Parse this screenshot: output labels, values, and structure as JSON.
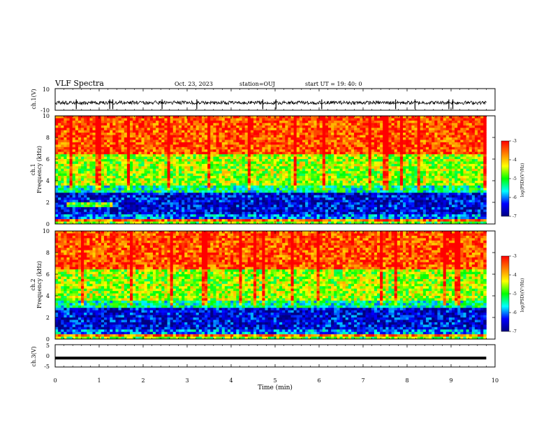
{
  "header": {
    "title": "VLF Spectra",
    "date": "Oct. 23, 2023",
    "station": "station=OUJ",
    "start": "start  UT =  19: 40: 0"
  },
  "colorbar": {
    "label": "log(PSD)(V²/Hz)",
    "ticks": [
      "-3",
      "-4",
      "-5",
      "-6",
      "-7"
    ],
    "stops": [
      "#ff0000",
      "#ff7f00",
      "#ffff00",
      "#00ff00",
      "#00ffff",
      "#0000ff",
      "#000080"
    ]
  },
  "chart_data": [
    {
      "type": "line",
      "panel": "ch1-waveform",
      "ylabel": "ch.1(V)",
      "ylim": [
        -10,
        10
      ],
      "yticks": [
        "10",
        "-10"
      ],
      "baseline": -3,
      "spikes": [
        0.48,
        1.24,
        1.31,
        2.43,
        3.22,
        4.72,
        5.02,
        6.06,
        7.74,
        8.18,
        8.95,
        9.04
      ]
    },
    {
      "type": "heatmap",
      "panel": "ch1-spectrogram",
      "ylabel": "ch.1",
      "ylabel2": "Frequency (kHz)",
      "ylim": [
        0,
        10
      ],
      "yticks": [
        "0",
        "2",
        "4",
        "6",
        "8",
        "10"
      ]
    },
    {
      "type": "heatmap",
      "panel": "ch2-spectrogram",
      "ylabel": "ch.2",
      "ylabel2": "Frequency (kHz)",
      "ylim": [
        0,
        10
      ],
      "yticks": [
        "0",
        "2",
        "4",
        "6",
        "8",
        "10"
      ]
    },
    {
      "type": "line",
      "panel": "ch3-waveform",
      "ylabel": "ch.3(V)",
      "ylim": [
        -5,
        5
      ],
      "yticks": [
        "5",
        "0",
        "-5"
      ],
      "level": -1
    }
  ],
  "xaxis": {
    "label": "Time (min)",
    "ticks": [
      "0",
      "1",
      "2",
      "3",
      "4",
      "5",
      "6",
      "7",
      "8",
      "9",
      "10"
    ],
    "range": [
      0,
      10
    ],
    "data_end": 9.8
  }
}
